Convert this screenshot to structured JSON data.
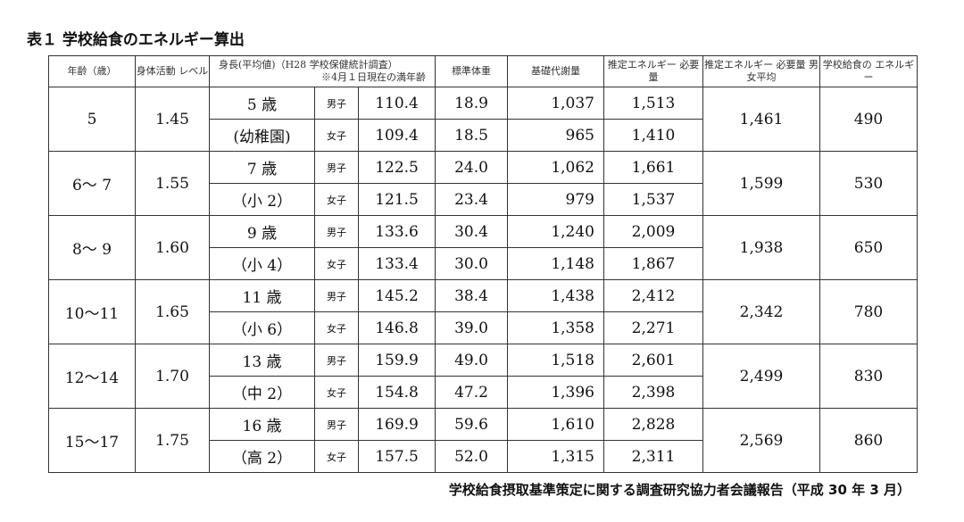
{
  "title": "表１ 学校給食のエネルギー算出",
  "headers": {
    "age": "年齢（歳）",
    "activity": "身体活動 レベル",
    "height_line1": "身長(平均値)（H28 学校保健統計調査）",
    "height_line2": "※4月１日現在の満年齢",
    "weight": "標準体重",
    "bmr": "基礎代謝量",
    "eer": "推定エネルギー 必要量",
    "eer_avg": "推定エネルギー 必要量 男女平均",
    "lunch": "学校給食の エネルギー"
  },
  "groups": [
    {
      "age": "5",
      "activity": "1.45",
      "ref1": "5 歳",
      "ref2": "(幼稚園)",
      "avg": "1,461",
      "lunch": "490",
      "rows": [
        {
          "sex": "男子",
          "height": "110.4",
          "weight": "18.9",
          "bmr": "1,037",
          "eer": "1,513"
        },
        {
          "sex": "女子",
          "height": "109.4",
          "weight": "18.5",
          "bmr": "965",
          "eer": "1,410"
        }
      ]
    },
    {
      "age": "6～ 7",
      "activity": "1.55",
      "ref1": "7 歳",
      "ref2": "（小 2）",
      "avg": "1,599",
      "lunch": "530",
      "rows": [
        {
          "sex": "男子",
          "height": "122.5",
          "weight": "24.0",
          "bmr": "1,062",
          "eer": "1,661"
        },
        {
          "sex": "女子",
          "height": "121.5",
          "weight": "23.4",
          "bmr": "979",
          "eer": "1,537"
        }
      ]
    },
    {
      "age": "8～ 9",
      "activity": "1.60",
      "ref1": "9 歳",
      "ref2": "（小 4）",
      "avg": "1,938",
      "lunch": "650",
      "rows": [
        {
          "sex": "男子",
          "height": "133.6",
          "weight": "30.4",
          "bmr": "1,240",
          "eer": "2,009"
        },
        {
          "sex": "女子",
          "height": "133.4",
          "weight": "30.0",
          "bmr": "1,148",
          "eer": "1,867"
        }
      ]
    },
    {
      "age": "10～11",
      "activity": "1.65",
      "ref1": "11 歳",
      "ref2": "（小 6）",
      "avg": "2,342",
      "lunch": "780",
      "rows": [
        {
          "sex": "男子",
          "height": "145.2",
          "weight": "38.4",
          "bmr": "1,438",
          "eer": "2,412"
        },
        {
          "sex": "女子",
          "height": "146.8",
          "weight": "39.0",
          "bmr": "1,358",
          "eer": "2,271"
        }
      ]
    },
    {
      "age": "12～14",
      "activity": "1.70",
      "ref1": "13 歳",
      "ref2": "（中 2）",
      "avg": "2,499",
      "lunch": "830",
      "rows": [
        {
          "sex": "男子",
          "height": "159.9",
          "weight": "49.0",
          "bmr": "1,518",
          "eer": "2,601"
        },
        {
          "sex": "女子",
          "height": "154.8",
          "weight": "47.2",
          "bmr": "1,396",
          "eer": "2,398"
        }
      ]
    },
    {
      "age": "15～17",
      "activity": "1.75",
      "ref1": "16 歳",
      "ref2": "（高 2）",
      "avg": "2,569",
      "lunch": "860",
      "rows": [
        {
          "sex": "男子",
          "height": "169.9",
          "weight": "59.6",
          "bmr": "1,610",
          "eer": "2,828"
        },
        {
          "sex": "女子",
          "height": "157.5",
          "weight": "52.0",
          "bmr": "1,315",
          "eer": "2,311"
        }
      ]
    }
  ],
  "footer": "学校給食摂取基準策定に関する調査研究協力者会議報告（平成 30 年 3 月）"
}
